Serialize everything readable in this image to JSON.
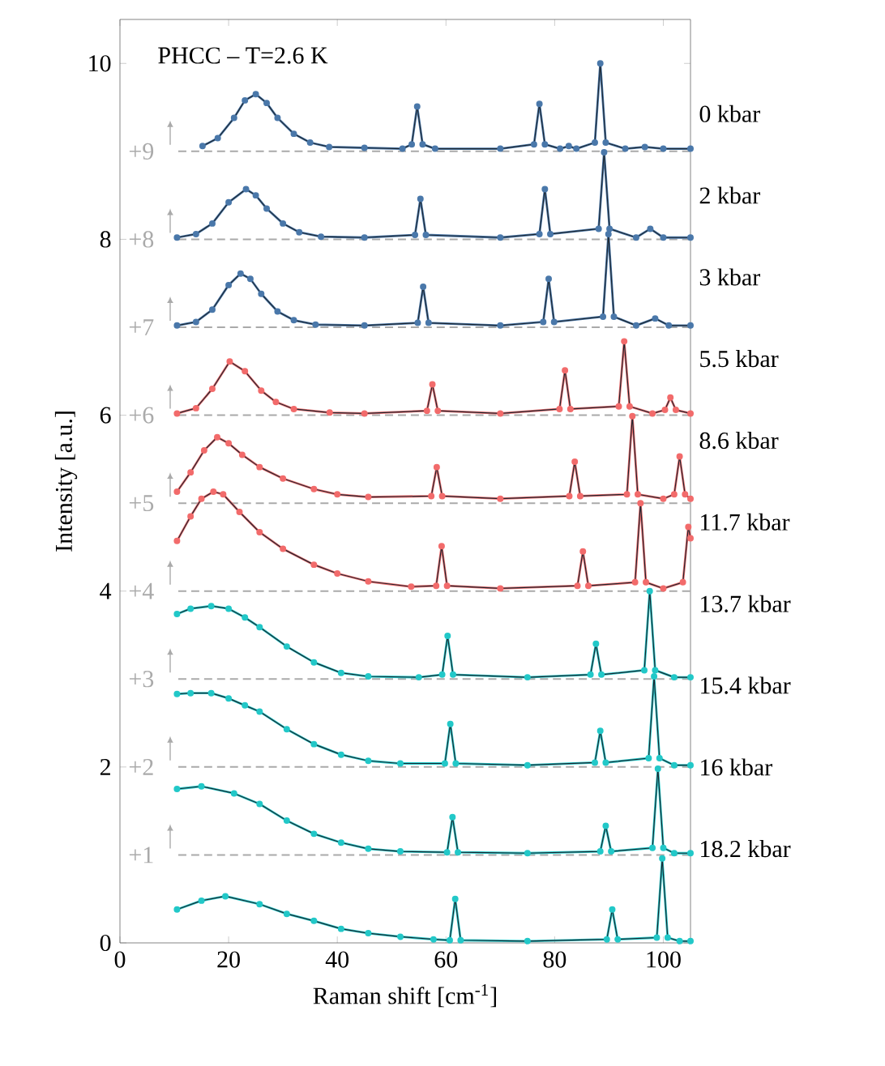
{
  "chart_data": {
    "type": "line",
    "title": "PHCC – T=2.6 K",
    "xlabel": "Raman shift [cm$^{-1}$]",
    "ylabel": "Intensity [a.u.]",
    "xlim": [
      0,
      105
    ],
    "ylim": [
      0,
      10.5
    ],
    "xticks": [
      0,
      20,
      40,
      60,
      80,
      100
    ],
    "yticks": [
      0,
      2,
      4,
      6,
      8,
      10
    ],
    "ref_lines": [
      {
        "axis": "y",
        "value": 9,
        "label": "+9",
        "color": "#aaaaaa",
        "line_style": "dashed"
      },
      {
        "axis": "y",
        "value": 8,
        "label": "+8",
        "color": "#aaaaaa",
        "line_style": "dashed"
      },
      {
        "axis": "y",
        "value": 7,
        "label": "+7",
        "color": "#aaaaaa",
        "line_style": "dashed"
      },
      {
        "axis": "y",
        "value": 6,
        "label": "+6",
        "color": "#aaaaaa",
        "line_style": "dashed"
      },
      {
        "axis": "y",
        "value": 5,
        "label": "+5",
        "color": "#aaaaaa",
        "line_style": "dashed"
      },
      {
        "axis": "y",
        "value": 4,
        "label": "+4",
        "color": "#aaaaaa",
        "line_style": "dashed"
      },
      {
        "axis": "y",
        "value": 3,
        "label": "+3",
        "color": "#aaaaaa",
        "line_style": "dashed"
      },
      {
        "axis": "y",
        "value": 2,
        "label": "+2",
        "color": "#aaaaaa",
        "line_style": "dashed"
      },
      {
        "axis": "y",
        "value": 1,
        "label": "+1",
        "color": "#aaaaaa",
        "line_style": "dashed"
      }
    ],
    "series": [
      {
        "name": "0 kbar",
        "marker": "circle",
        "color": "#4a78aa",
        "x": [
          15.2,
          18,
          21,
          23,
          25,
          27,
          29,
          32,
          35,
          38.5,
          45,
          52,
          53.7,
          54.7,
          55.7,
          58,
          70,
          76.2,
          77.2,
          78.2,
          81,
          82.6,
          84,
          87.4,
          88.4,
          89.4,
          93,
          96.6,
          100,
          105
        ],
        "values": [
          9.06,
          9.15,
          9.38,
          9.58,
          9.65,
          9.55,
          9.38,
          9.2,
          9.1,
          9.05,
          9.04,
          9.03,
          9.08,
          9.51,
          9.08,
          9.03,
          9.03,
          9.08,
          9.54,
          9.08,
          9.03,
          9.06,
          9.03,
          9.1,
          10.0,
          9.1,
          9.03,
          9.05,
          9.03,
          9.03
        ]
      },
      {
        "marker": "none",
        "color": "#1f2933",
        "x": [
          15.2,
          18,
          21,
          23,
          25,
          27,
          29,
          32,
          35,
          38.5,
          45,
          52,
          53.7,
          54.7,
          55.7,
          58,
          70,
          76.2,
          77.2,
          78.2,
          81,
          82.6,
          84,
          87.4,
          88.4,
          89.4,
          93,
          96.6,
          100,
          105
        ],
        "values": [
          9.06,
          9.15,
          9.38,
          9.58,
          9.65,
          9.55,
          9.38,
          9.2,
          9.1,
          9.05,
          9.04,
          9.03,
          9.08,
          9.51,
          9.08,
          9.03,
          9.03,
          9.08,
          9.54,
          9.08,
          9.03,
          9.06,
          9.03,
          9.1,
          10.0,
          9.1,
          9.03,
          9.05,
          9.03,
          9.03
        ]
      },
      {
        "name": "2 kbar",
        "marker": "circle",
        "color": "#4a78aa",
        "x": [
          10.5,
          14,
          17,
          20,
          23.2,
          25,
          27,
          30,
          33,
          37,
          45,
          54.3,
          55.3,
          56.3,
          70,
          77.2,
          78.2,
          79.2,
          88.1,
          89.1,
          90.1,
          95,
          97.6,
          100,
          105
        ],
        "values": [
          8.02,
          8.06,
          8.18,
          8.42,
          8.57,
          8.5,
          8.35,
          8.18,
          8.08,
          8.03,
          8.02,
          8.05,
          8.46,
          8.05,
          8.02,
          8.06,
          8.57,
          8.06,
          8.12,
          8.99,
          8.12,
          8.02,
          8.12,
          8.02,
          8.02
        ]
      },
      {
        "marker": "none",
        "color": "#1f2933",
        "x": [
          10.5,
          14,
          17,
          20,
          23.2,
          25,
          27,
          30,
          33,
          37,
          45,
          54.3,
          55.3,
          56.3,
          70,
          77.2,
          78.2,
          79.2,
          88.1,
          89.1,
          90.1,
          95,
          97.6,
          100,
          105
        ],
        "values": [
          8.02,
          8.06,
          8.18,
          8.42,
          8.57,
          8.5,
          8.35,
          8.18,
          8.08,
          8.03,
          8.02,
          8.05,
          8.46,
          8.05,
          8.02,
          8.06,
          8.57,
          8.06,
          8.12,
          8.99,
          8.12,
          8.02,
          8.12,
          8.02,
          8.02
        ]
      },
      {
        "name": "3 kbar",
        "marker": "circle",
        "color": "#4a78aa",
        "x": [
          10.5,
          14,
          17,
          20,
          22.2,
          24,
          26,
          29,
          32,
          36,
          45,
          54.8,
          55.8,
          56.8,
          70,
          77.9,
          78.9,
          79.9,
          88.9,
          89.9,
          90.9,
          95,
          98.5,
          101,
          105
        ],
        "values": [
          7.02,
          7.06,
          7.2,
          7.48,
          7.61,
          7.55,
          7.38,
          7.18,
          7.08,
          7.03,
          7.02,
          7.05,
          7.46,
          7.05,
          7.02,
          7.06,
          7.55,
          7.06,
          7.12,
          8.06,
          7.12,
          7.02,
          7.1,
          7.02,
          7.02
        ]
      },
      {
        "marker": "none",
        "color": "#1f2933",
        "x": [
          10.5,
          14,
          17,
          20,
          22.2,
          24,
          26,
          29,
          32,
          36,
          45,
          54.8,
          55.8,
          56.8,
          70,
          77.9,
          78.9,
          79.9,
          88.9,
          89.9,
          90.9,
          95,
          98.5,
          101,
          105
        ],
        "values": [
          7.02,
          7.06,
          7.2,
          7.48,
          7.61,
          7.55,
          7.38,
          7.18,
          7.08,
          7.03,
          7.02,
          7.05,
          7.46,
          7.05,
          7.02,
          7.06,
          7.55,
          7.06,
          7.12,
          8.06,
          7.12,
          7.02,
          7.1,
          7.02,
          7.02
        ]
      },
      {
        "name": "5.5 kbar",
        "marker": "circle",
        "color": "#f26b6b",
        "x": [
          10.5,
          14,
          17,
          20.2,
          23,
          26,
          28.7,
          32,
          38.6,
          45,
          56.5,
          57.5,
          58.5,
          70,
          80.9,
          81.9,
          82.9,
          91.8,
          92.8,
          93.8,
          98,
          100.3,
          101.3,
          102.3,
          105
        ],
        "values": [
          6.02,
          6.08,
          6.3,
          6.61,
          6.5,
          6.28,
          6.15,
          6.07,
          6.03,
          6.02,
          6.05,
          6.35,
          6.05,
          6.02,
          6.07,
          6.51,
          6.07,
          6.1,
          6.84,
          6.1,
          6.02,
          6.06,
          6.2,
          6.06,
          6.02
        ]
      },
      {
        "marker": "none",
        "color": "#1f2933",
        "x": [
          10.5,
          14,
          17,
          20.2,
          23,
          26,
          28.7,
          32,
          38.6,
          45,
          56.5,
          57.5,
          58.5,
          70,
          80.9,
          81.9,
          82.9,
          91.8,
          92.8,
          93.8,
          98,
          100.3,
          101.3,
          102.3,
          105
        ],
        "values": [
          6.02,
          6.08,
          6.3,
          6.61,
          6.5,
          6.28,
          6.15,
          6.07,
          6.03,
          6.02,
          6.05,
          6.35,
          6.05,
          6.02,
          6.07,
          6.51,
          6.07,
          6.1,
          6.84,
          6.1,
          6.02,
          6.06,
          6.2,
          6.06,
          6.02
        ]
      },
      {
        "name": "8.6 kbar",
        "marker": "circle",
        "color": "#f26b6b",
        "x": [
          10.5,
          13,
          15.5,
          17.9,
          20,
          22.5,
          25.7,
          30,
          35.7,
          40,
          45.7,
          57.3,
          58.3,
          59.3,
          70,
          82.7,
          83.7,
          84.7,
          93.3,
          94.3,
          95.3,
          100,
          102,
          103,
          104,
          105
        ],
        "values": [
          5.13,
          5.35,
          5.6,
          5.75,
          5.68,
          5.55,
          5.41,
          5.28,
          5.16,
          5.1,
          5.07,
          5.08,
          5.41,
          5.08,
          5.05,
          5.08,
          5.47,
          5.08,
          5.1,
          5.99,
          5.1,
          5.05,
          5.1,
          5.53,
          5.1,
          5.05
        ]
      },
      {
        "marker": "none",
        "color": "#1f2933",
        "x": [
          10.5,
          13,
          15.5,
          17.9,
          20,
          22.5,
          25.7,
          30,
          35.7,
          40,
          45.7,
          57.3,
          58.3,
          59.3,
          70,
          82.7,
          83.7,
          84.7,
          93.3,
          94.3,
          95.3,
          100,
          102,
          103,
          104,
          105
        ],
        "values": [
          5.13,
          5.35,
          5.6,
          5.75,
          5.68,
          5.55,
          5.41,
          5.28,
          5.16,
          5.1,
          5.07,
          5.08,
          5.41,
          5.08,
          5.05,
          5.08,
          5.47,
          5.08,
          5.1,
          5.99,
          5.1,
          5.05,
          5.1,
          5.53,
          5.1,
          5.05
        ]
      },
      {
        "name": "11.7 kbar",
        "marker": "circle",
        "color": "#f26b6b",
        "x": [
          10.5,
          13,
          15,
          17.2,
          19,
          22,
          25.7,
          30,
          35.7,
          40,
          45.7,
          53.6,
          58.2,
          59.2,
          60.2,
          70,
          84.2,
          85.2,
          86.2,
          94.8,
          95.8,
          96.8,
          100,
          103.6,
          104.6,
          105
        ],
        "values": [
          4.57,
          4.85,
          5.05,
          5.13,
          5.1,
          4.9,
          4.67,
          4.48,
          4.3,
          4.2,
          4.11,
          4.05,
          4.06,
          4.51,
          4.06,
          4.03,
          4.06,
          4.45,
          4.06,
          4.1,
          5.0,
          4.1,
          4.03,
          4.1,
          4.73,
          4.6
        ]
      },
      {
        "marker": "none",
        "color": "#1f2933",
        "x": [
          10.5,
          13,
          15,
          17.2,
          19,
          22,
          25.7,
          30,
          35.7,
          40,
          45.7,
          53.6,
          58.2,
          59.2,
          60.2,
          70,
          84.2,
          85.2,
          86.2,
          94.8,
          95.8,
          96.8,
          100,
          103.6,
          104.6,
          105
        ],
        "values": [
          4.57,
          4.85,
          5.05,
          5.13,
          5.1,
          4.9,
          4.67,
          4.48,
          4.3,
          4.2,
          4.11,
          4.05,
          4.06,
          4.51,
          4.06,
          4.03,
          4.06,
          4.45,
          4.06,
          4.1,
          5.0,
          4.1,
          4.03,
          4.1,
          4.73,
          4.6
        ]
      },
      {
        "name": "13.7 kbar",
        "marker": "circle",
        "color": "#22c8c8",
        "x": [
          10.5,
          13,
          16.8,
          20,
          23,
          25.7,
          30.7,
          35.7,
          40.7,
          45.7,
          55,
          59.3,
          60.3,
          61.3,
          75,
          86.6,
          87.6,
          88.6,
          96.5,
          97.5,
          98.5,
          102,
          105
        ],
        "values": [
          3.74,
          3.8,
          3.83,
          3.8,
          3.7,
          3.59,
          3.37,
          3.19,
          3.07,
          3.03,
          3.02,
          3.05,
          3.49,
          3.05,
          3.02,
          3.05,
          3.4,
          3.05,
          3.1,
          4.0,
          3.1,
          3.02,
          3.02
        ]
      },
      {
        "marker": "none",
        "color": "#1f2933",
        "x": [
          10.5,
          13,
          16.8,
          20,
          23,
          25.7,
          30.7,
          35.7,
          40.7,
          45.7,
          55,
          59.3,
          60.3,
          61.3,
          75,
          86.6,
          87.6,
          88.6,
          96.5,
          97.5,
          98.5,
          102,
          105
        ],
        "values": [
          3.74,
          3.8,
          3.83,
          3.8,
          3.7,
          3.59,
          3.37,
          3.19,
          3.07,
          3.03,
          3.02,
          3.05,
          3.49,
          3.05,
          3.02,
          3.05,
          3.4,
          3.05,
          3.1,
          4.0,
          3.1,
          3.02,
          3.02
        ]
      },
      {
        "name": "15.4 kbar",
        "marker": "circle",
        "color": "#22c8c8",
        "x": [
          10.5,
          13,
          16.8,
          20,
          23,
          25.7,
          30.7,
          35.7,
          40.7,
          45.7,
          51.6,
          59.8,
          60.8,
          61.8,
          75,
          87.4,
          88.4,
          89.4,
          97.3,
          98.3,
          99.3,
          102,
          105
        ],
        "values": [
          2.83,
          2.84,
          2.84,
          2.78,
          2.7,
          2.63,
          2.43,
          2.26,
          2.14,
          2.07,
          2.04,
          2.04,
          2.49,
          2.04,
          2.02,
          2.05,
          2.41,
          2.05,
          2.1,
          3.03,
          2.1,
          2.02,
          2.02
        ]
      },
      {
        "marker": "none",
        "color": "#1f2933",
        "x": [
          10.5,
          13,
          16.8,
          20,
          23,
          25.7,
          30.7,
          35.7,
          40.7,
          45.7,
          51.6,
          59.8,
          60.8,
          61.8,
          75,
          87.4,
          88.4,
          89.4,
          97.3,
          98.3,
          99.3,
          102,
          105
        ],
        "values": [
          2.83,
          2.84,
          2.84,
          2.78,
          2.7,
          2.63,
          2.43,
          2.26,
          2.14,
          2.07,
          2.04,
          2.04,
          2.49,
          2.04,
          2.02,
          2.05,
          2.41,
          2.05,
          2.1,
          3.03,
          2.1,
          2.02,
          2.02
        ]
      },
      {
        "name": "16 kbar",
        "marker": "circle",
        "color": "#22c8c8",
        "x": [
          10.5,
          15,
          21,
          25.7,
          30.7,
          35.7,
          40.7,
          45.7,
          51.6,
          60.2,
          61.2,
          62.2,
          75,
          88.4,
          89.4,
          90.4,
          98,
          99,
          100,
          102,
          105
        ],
        "values": [
          1.75,
          1.78,
          1.7,
          1.58,
          1.39,
          1.24,
          1.14,
          1.07,
          1.04,
          1.03,
          1.43,
          1.03,
          1.02,
          1.04,
          1.33,
          1.04,
          1.08,
          1.98,
          1.08,
          1.02,
          1.02
        ]
      },
      {
        "marker": "none",
        "color": "#1f2933",
        "x": [
          10.5,
          15,
          21,
          25.7,
          30.7,
          35.7,
          40.7,
          45.7,
          51.6,
          60.2,
          61.2,
          62.2,
          75,
          88.4,
          89.4,
          90.4,
          98,
          99,
          100,
          102,
          105
        ],
        "values": [
          1.75,
          1.78,
          1.7,
          1.58,
          1.39,
          1.24,
          1.14,
          1.07,
          1.04,
          1.03,
          1.43,
          1.03,
          1.02,
          1.04,
          1.33,
          1.04,
          1.08,
          1.98,
          1.08,
          1.02,
          1.02
        ]
      },
      {
        "name": "18.2 kbar",
        "marker": "circle",
        "color": "#22c8c8",
        "x": [
          10.5,
          15,
          19.4,
          25.7,
          30.7,
          35.7,
          40.7,
          45.7,
          51.6,
          57.7,
          60.7,
          61.7,
          62.7,
          75,
          89.6,
          90.6,
          91.6,
          98.8,
          99.8,
          100.8,
          103,
          105
        ],
        "values": [
          0.38,
          0.48,
          0.53,
          0.44,
          0.33,
          0.25,
          0.16,
          0.11,
          0.07,
          0.04,
          0.03,
          0.5,
          0.03,
          0.02,
          0.04,
          0.38,
          0.04,
          0.06,
          0.96,
          0.06,
          0.02,
          0.02
        ]
      },
      {
        "marker": "none",
        "color": "#1f2933",
        "x": [
          10.5,
          15,
          19.4,
          25.7,
          30.7,
          35.7,
          40.7,
          45.7,
          51.6,
          57.7,
          60.7,
          61.7,
          62.7,
          75,
          89.6,
          90.6,
          91.6,
          98.8,
          99.8,
          100.8,
          103,
          105
        ],
        "values": [
          0.38,
          0.48,
          0.53,
          0.44,
          0.33,
          0.25,
          0.16,
          0.11,
          0.07,
          0.04,
          0.03,
          0.5,
          0.03,
          0.02,
          0.04,
          0.38,
          0.04,
          0.06,
          0.96,
          0.06,
          0.02,
          0.02
        ]
      }
    ]
  }
}
